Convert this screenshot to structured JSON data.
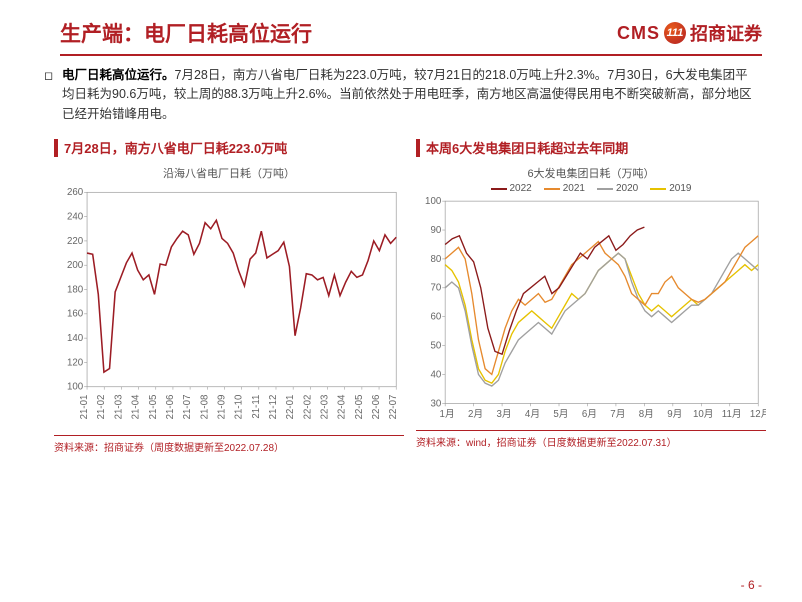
{
  "header": {
    "title": "生产端：电厂日耗高位运行",
    "logo_cms": "CMS",
    "logo_cn": "招商证券"
  },
  "body": {
    "lead": "电厂日耗高位运行。",
    "text": "7月28日，南方八省电厂日耗为223.0万吨，较7月21日的218.0万吨上升2.3%。7月30日，6大发电集团平均日耗为90.6万吨，较上周的88.3万吨上升2.6%。当前依然处于用电旺季，南方地区高温使得民用电不断突破新高，部分地区已经开始错峰用电。"
  },
  "chart_left": {
    "panel_title": "7月28日，南方八省电厂日耗223.0万吨",
    "inner_title": "沿海八省电厂日耗（万吨）",
    "source": "资料来源：招商证券（周度数据更新至2022.07.28）",
    "type": "line",
    "color": "#9c1c24",
    "line_width": 1.6,
    "grid_color": "#dddddd",
    "background_color": "#ffffff",
    "ylim": [
      100,
      260
    ],
    "ytick_step": 20,
    "x_labels": [
      "21-01",
      "21-02",
      "21-03",
      "21-04",
      "21-05",
      "21-06",
      "21-07",
      "21-08",
      "21-09",
      "21-10",
      "21-11",
      "21-12",
      "22-01",
      "22-02",
      "22-03",
      "22-04",
      "22-05",
      "22-06",
      "22-07"
    ],
    "values": [
      210,
      209,
      176,
      112,
      115,
      178,
      190,
      202,
      210,
      196,
      188,
      192,
      176,
      201,
      200,
      215,
      222,
      228,
      225,
      209,
      218,
      235,
      230,
      237,
      222,
      218,
      210,
      195,
      183,
      205,
      210,
      228,
      206,
      209,
      212,
      219,
      199,
      142,
      165,
      193,
      192,
      188,
      190,
      175,
      192,
      175,
      186,
      195,
      190,
      192,
      204,
      220,
      212,
      225,
      218,
      223
    ]
  },
  "chart_right": {
    "panel_title": "本周6大发电集团日耗超过去年同期",
    "inner_title": "6大发电集团日耗（万吨）",
    "source": "资料来源：wind，招商证券（日度数据更新至2022.07.31）",
    "type": "line",
    "line_width": 1.4,
    "grid_color": "#dddddd",
    "background_color": "#ffffff",
    "ylim": [
      30,
      100
    ],
    "ytick_step": 10,
    "x_labels": [
      "1月",
      "2月",
      "3月",
      "4月",
      "5月",
      "6月",
      "7月",
      "8月",
      "9月",
      "10月",
      "11月",
      "12月"
    ],
    "legend": [
      {
        "label": "2022",
        "color": "#8b1a1a"
      },
      {
        "label": "2021",
        "color": "#e68a2e"
      },
      {
        "label": "2020",
        "color": "#a0a0a0"
      },
      {
        "label": "2019",
        "color": "#e6c200"
      }
    ],
    "series": {
      "s2022": {
        "color": "#8b1a1a",
        "values": [
          85,
          87,
          88,
          82,
          79,
          70,
          56,
          48,
          47,
          55,
          62,
          68,
          70,
          72,
          74,
          68,
          70,
          74,
          78,
          82,
          80,
          84,
          86,
          88,
          83,
          85,
          88,
          90,
          91
        ]
      },
      "s2021": {
        "color": "#e68a2e",
        "values": [
          80,
          82,
          84,
          80,
          68,
          52,
          42,
          40,
          48,
          56,
          62,
          66,
          64,
          66,
          68,
          65,
          66,
          70,
          74,
          78,
          80,
          82,
          84,
          86,
          82,
          80,
          78,
          74,
          68,
          66,
          64,
          68,
          68,
          72,
          74,
          70,
          68,
          66,
          65,
          66,
          68,
          70,
          72,
          76,
          80,
          84,
          86,
          88
        ]
      },
      "s2020": {
        "color": "#a0a0a0",
        "values": [
          70,
          72,
          70,
          62,
          50,
          40,
          37,
          36,
          38,
          44,
          48,
          52,
          54,
          56,
          58,
          56,
          54,
          58,
          62,
          64,
          66,
          68,
          72,
          76,
          78,
          80,
          82,
          80,
          72,
          66,
          62,
          60,
          62,
          60,
          58,
          60,
          62,
          64,
          64,
          66,
          68,
          72,
          76,
          80,
          82,
          80,
          78,
          76
        ]
      },
      "s2019": {
        "color": "#e6c200",
        "values": [
          78,
          76,
          72,
          64,
          52,
          42,
          38,
          37,
          40,
          48,
          54,
          58,
          60,
          62,
          60,
          58,
          56,
          60,
          64,
          68,
          66,
          68,
          72,
          76,
          78,
          80,
          82,
          80,
          74,
          68,
          64,
          62,
          64,
          62,
          60,
          62,
          64,
          66,
          64,
          66,
          68,
          70,
          72,
          74,
          76,
          78,
          76,
          78
        ]
      }
    }
  },
  "page_number": "- 6 -"
}
